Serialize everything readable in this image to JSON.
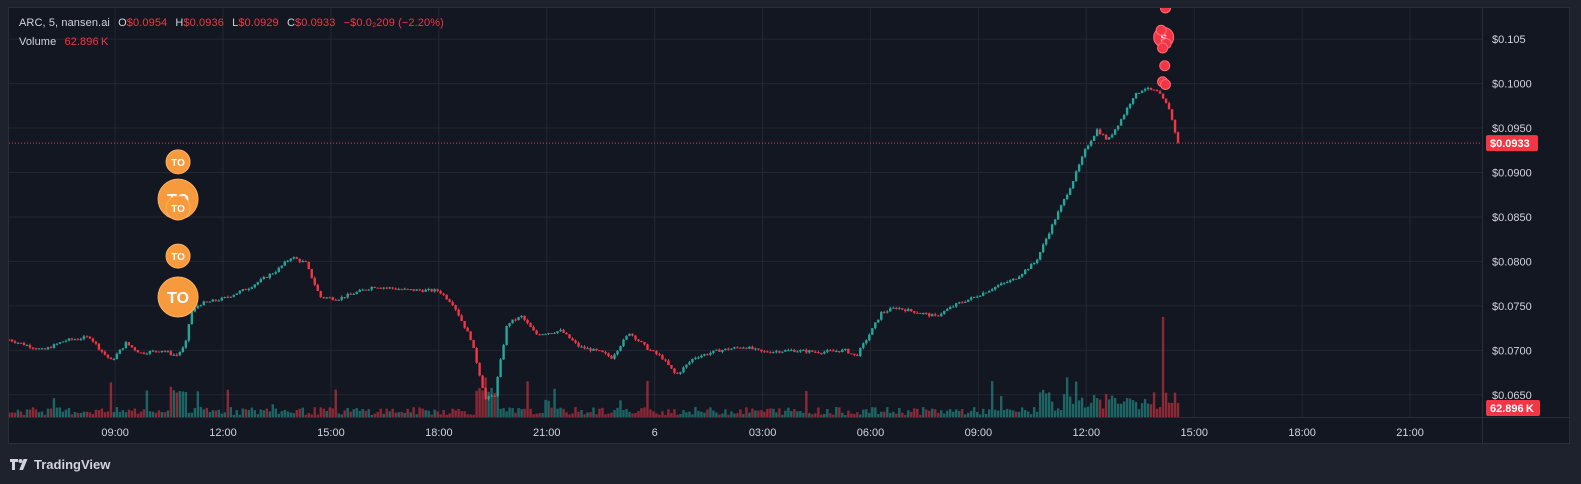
{
  "legend": {
    "symbol": "ARC, 5, nansen.ai",
    "o_label": "O",
    "o_value": "$0.0954",
    "h_label": "H",
    "h_value": "$0.0936",
    "l_label": "L",
    "l_value": "$0.0929",
    "c_label": "C",
    "c_value": "$0.0933",
    "change": "−$0.0₂209 (−2.20%)",
    "volume_label": "Volume",
    "volume_value": "62.896 K"
  },
  "branding": {
    "logo_text": "TradingView",
    "logo_icon": "tradingview-logo-icon"
  },
  "colors": {
    "up": "#26a69a",
    "down": "#f23645",
    "grid": "#232733",
    "text": "#d1d4dc",
    "marker": "#f79a3d",
    "sell_marker": "#f23645",
    "background": "#131722"
  },
  "chart_data": {
    "type": "candlestick",
    "symbol": "ARC",
    "interval": "5",
    "source": "nansen.ai",
    "y_axis_labels": [
      "$0.105",
      "$0.1000",
      "$0.0950",
      "$0.0900",
      "$0.0850",
      "$0.0800",
      "$0.0750",
      "$0.0700",
      "$0.0650"
    ],
    "y_axis_values": [
      0.105,
      0.1,
      0.095,
      0.09,
      0.085,
      0.08,
      0.075,
      0.07,
      0.065
    ],
    "ylim": [
      0.0625,
      0.1085
    ],
    "x_axis_labels": [
      "09:00",
      "12:00",
      "15:00",
      "18:00",
      "21:00",
      "6",
      "03:00",
      "06:00",
      "09:00",
      "12:00",
      "15:00",
      "18:00",
      "21:00"
    ],
    "x_axis_hours": [
      9,
      12,
      15,
      18,
      21,
      24,
      27,
      30,
      33,
      36,
      39,
      42,
      45
    ],
    "xlim_hours": [
      6.05,
      47.0
    ],
    "last_price": 0.0933,
    "last_price_label": "$0.0933",
    "last_volume_label": "62.896 K",
    "price_path": [
      [
        6.05,
        0.0712
      ],
      [
        7.0,
        0.07
      ],
      [
        7.6,
        0.0711
      ],
      [
        8.3,
        0.0715
      ],
      [
        8.6,
        0.07
      ],
      [
        8.9,
        0.0688
      ],
      [
        9.3,
        0.0708
      ],
      [
        9.7,
        0.0697
      ],
      [
        10.3,
        0.07
      ],
      [
        10.7,
        0.0694
      ],
      [
        10.95,
        0.0705
      ],
      [
        11.1,
        0.0742
      ],
      [
        11.35,
        0.0752
      ],
      [
        12.0,
        0.0758
      ],
      [
        12.7,
        0.077
      ],
      [
        13.5,
        0.079
      ],
      [
        13.9,
        0.0805
      ],
      [
        14.3,
        0.0798
      ],
      [
        14.7,
        0.076
      ],
      [
        15.2,
        0.0758
      ],
      [
        16.2,
        0.0772
      ],
      [
        17.1,
        0.0768
      ],
      [
        18.0,
        0.0767
      ],
      [
        18.4,
        0.0752
      ],
      [
        18.9,
        0.0712
      ],
      [
        19.3,
        0.0645
      ],
      [
        19.55,
        0.065
      ],
      [
        19.9,
        0.073
      ],
      [
        20.3,
        0.0738
      ],
      [
        20.7,
        0.0718
      ],
      [
        21.4,
        0.0722
      ],
      [
        21.9,
        0.0704
      ],
      [
        22.5,
        0.0698
      ],
      [
        22.8,
        0.0692
      ],
      [
        23.3,
        0.072
      ],
      [
        23.8,
        0.0702
      ],
      [
        24.2,
        0.0692
      ],
      [
        24.6,
        0.0672
      ],
      [
        25.1,
        0.0692
      ],
      [
        25.8,
        0.07
      ],
      [
        26.5,
        0.0704
      ],
      [
        27.0,
        0.0698
      ],
      [
        27.8,
        0.07
      ],
      [
        28.6,
        0.0698
      ],
      [
        29.3,
        0.07
      ],
      [
        29.6,
        0.0693
      ],
      [
        30.0,
        0.072
      ],
      [
        30.3,
        0.0742
      ],
      [
        30.7,
        0.0748
      ],
      [
        31.4,
        0.0742
      ],
      [
        31.8,
        0.0738
      ],
      [
        32.4,
        0.0752
      ],
      [
        32.9,
        0.076
      ],
      [
        33.5,
        0.0772
      ],
      [
        34.0,
        0.078
      ],
      [
        34.6,
        0.08
      ],
      [
        35.1,
        0.0845
      ],
      [
        35.6,
        0.0888
      ],
      [
        36.0,
        0.0928
      ],
      [
        36.3,
        0.0948
      ],
      [
        36.6,
        0.0936
      ],
      [
        37.0,
        0.0962
      ],
      [
        37.3,
        0.0985
      ],
      [
        37.6,
        0.0995
      ],
      [
        38.0,
        0.099
      ],
      [
        38.3,
        0.0972
      ],
      [
        38.55,
        0.0933
      ]
    ],
    "volume_series": "green/red bars along bottom; peak near 14:10 day 2",
    "trade_markers": [
      {
        "label": "TO",
        "time_h": 10.75,
        "price": 0.0912,
        "size": "small"
      },
      {
        "label": "TO",
        "time_h": 10.75,
        "price": 0.087,
        "size": "large"
      },
      {
        "label": "TO",
        "time_h": 10.75,
        "price": 0.086,
        "size": "small"
      },
      {
        "label": "TO",
        "time_h": 10.75,
        "price": 0.0806,
        "size": "small"
      },
      {
        "label": "TO",
        "time_h": 10.75,
        "price": 0.076,
        "size": "large"
      },
      {
        "label": "S",
        "time_h": 38.15,
        "price": 0.1052,
        "size": "medium"
      }
    ],
    "grid": true,
    "crosshair_price_line": "dotted red at last price"
  }
}
